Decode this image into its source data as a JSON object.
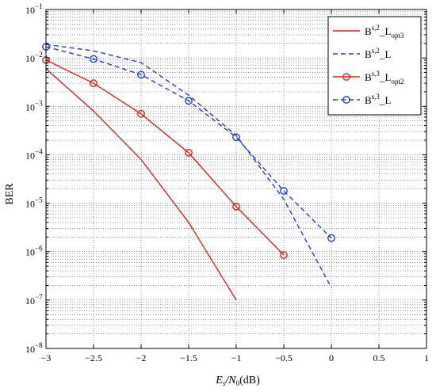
{
  "chart_data": {
    "type": "line",
    "title": "",
    "xlabel": {
      "main": "E",
      "sub1": "s",
      "mid": "/N",
      "sub2": "0",
      "tail": "(dB)"
    },
    "ylabel": "BER",
    "xlim": [
      -3,
      1
    ],
    "ylim_log10": [
      -8,
      -1
    ],
    "y_scale": "log",
    "grid": "major and minor, dotted",
    "legend_position": "top-right",
    "x_ticks": [
      "−3",
      "−2.5",
      "−2",
      "−1.5",
      "−1",
      "−0.5",
      "0",
      "0.5",
      "1"
    ],
    "x_tick_values": [
      -3,
      -2.5,
      -2,
      -1.5,
      -1,
      -0.5,
      0,
      0.5,
      1
    ],
    "y_tick_exponents": [
      "−8",
      "−7",
      "−6",
      "−5",
      "−4",
      "−3",
      "−2",
      "−1"
    ],
    "y_tick_base": "10",
    "series": [
      {
        "legend": {
          "base": "B",
          "sup": "s,2",
          "mid": "_L",
          "sub": "opt3"
        },
        "color": "#e32119",
        "dash": "solid",
        "marker": "none",
        "x": [
          -3,
          -2.5,
          -2,
          -1.5,
          -1
        ],
        "y": [
          0.006,
          0.0008,
          8e-05,
          4e-06,
          1e-07
        ]
      },
      {
        "legend": {
          "base": "B",
          "sup": "s,2",
          "mid": "_L",
          "sub": ""
        },
        "color": "#1f3fd6",
        "dash": "dashed",
        "marker": "none",
        "x": [
          -3,
          -2.5,
          -2,
          -1.5,
          -1,
          -0.5,
          0
        ],
        "y": [
          0.019,
          0.014,
          0.008,
          0.0017,
          0.00025,
          1.2e-05,
          1.8e-07
        ]
      },
      {
        "legend": {
          "base": "B",
          "sup": "s,3",
          "mid": "_L",
          "sub": "opt2"
        },
        "color": "#e32119",
        "dash": "solid",
        "marker": "circle",
        "x": [
          -3,
          -2.5,
          -2,
          -1.5,
          -1,
          -0.5
        ],
        "y": [
          0.009,
          0.003,
          0.0007,
          0.00011,
          8.5e-06,
          8.5e-07
        ]
      },
      {
        "legend": {
          "base": "B",
          "sup": "s,3",
          "mid": "_L",
          "sub": ""
        },
        "color": "#1f3fd6",
        "dash": "dashed",
        "marker": "circle",
        "x": [
          -3,
          -2.5,
          -2,
          -1.5,
          -1,
          -0.5,
          0
        ],
        "y": [
          0.017,
          0.0095,
          0.0045,
          0.0013,
          0.00023,
          1.8e-05,
          1.9e-06
        ]
      }
    ]
  }
}
